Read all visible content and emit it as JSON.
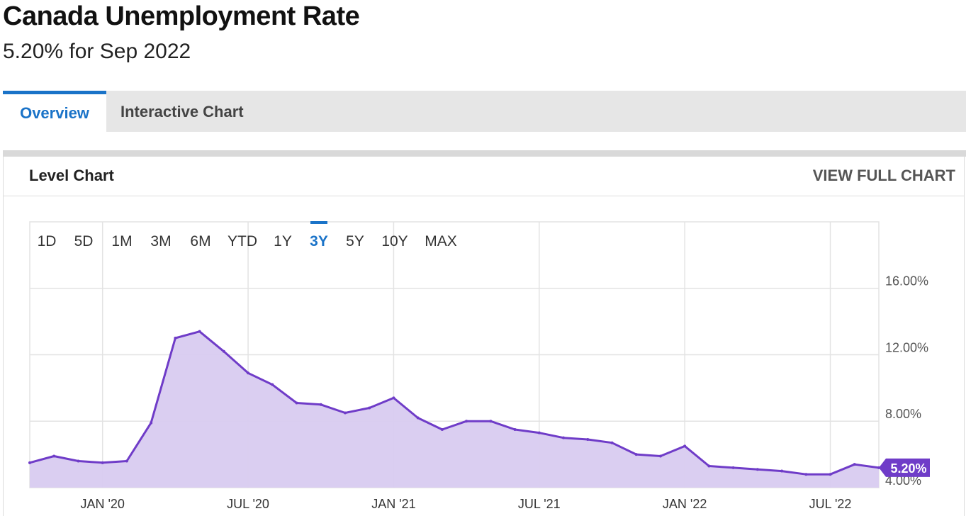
{
  "page": {
    "title": "Canada Unemployment Rate",
    "subtitle": "5.20% for Sep 2022"
  },
  "tabs": [
    {
      "label": "Overview",
      "active": true
    },
    {
      "label": "Interactive Chart",
      "active": false
    }
  ],
  "panel": {
    "title": "Level Chart",
    "view_full_label": "VIEW FULL CHART"
  },
  "range_buttons": [
    {
      "label": "1D",
      "active": false
    },
    {
      "label": "5D",
      "active": false
    },
    {
      "label": "1M",
      "active": false
    },
    {
      "label": "3M",
      "active": false
    },
    {
      "label": "6M",
      "active": false
    },
    {
      "label": "YTD",
      "active": false
    },
    {
      "label": "1Y",
      "active": false
    },
    {
      "label": "3Y",
      "active": true
    },
    {
      "label": "5Y",
      "active": false
    },
    {
      "label": "10Y",
      "active": false
    },
    {
      "label": "MAX",
      "active": false
    }
  ],
  "colors": {
    "series": "#6f3cc8",
    "fill": "#d8cbf0",
    "accent": "#1a73c8",
    "grid": "#e3e3e3"
  },
  "chart_data": {
    "type": "area",
    "title": "",
    "xlabel": "",
    "ylabel": "",
    "x": [
      "2019-10",
      "2019-11",
      "2019-12",
      "2020-01",
      "2020-02",
      "2020-03",
      "2020-04",
      "2020-05",
      "2020-06",
      "2020-07",
      "2020-08",
      "2020-09",
      "2020-10",
      "2020-11",
      "2020-12",
      "2021-01",
      "2021-02",
      "2021-03",
      "2021-04",
      "2021-05",
      "2021-06",
      "2021-07",
      "2021-08",
      "2021-09",
      "2021-10",
      "2021-11",
      "2021-12",
      "2022-01",
      "2022-02",
      "2022-03",
      "2022-04",
      "2022-05",
      "2022-06",
      "2022-07",
      "2022-08",
      "2022-09"
    ],
    "series": [
      {
        "values": [
          5.5,
          5.9,
          5.6,
          5.5,
          5.6,
          7.9,
          13.0,
          13.4,
          12.2,
          10.9,
          10.2,
          9.1,
          9.0,
          8.5,
          8.8,
          9.4,
          8.2,
          7.5,
          8.0,
          8.0,
          7.5,
          7.3,
          7.0,
          6.9,
          6.7,
          6.0,
          5.9,
          6.5,
          5.3,
          5.2,
          5.1,
          5.0,
          4.8,
          4.8,
          5.4,
          5.2
        ]
      }
    ],
    "x_ticks": [
      "JAN '20",
      "JUL '20",
      "JAN '21",
      "JUL '21",
      "JAN '22",
      "JUL '22"
    ],
    "x_tick_dates": [
      "2020-01",
      "2020-07",
      "2021-01",
      "2021-07",
      "2022-01",
      "2022-07"
    ],
    "y_ticks": [
      "4.00%",
      "8.00%",
      "12.00%",
      "16.00%"
    ],
    "y_tick_values": [
      4,
      8,
      12,
      16
    ],
    "ylim": [
      4,
      20
    ],
    "last_value_label": "5.20%",
    "grid": true
  }
}
